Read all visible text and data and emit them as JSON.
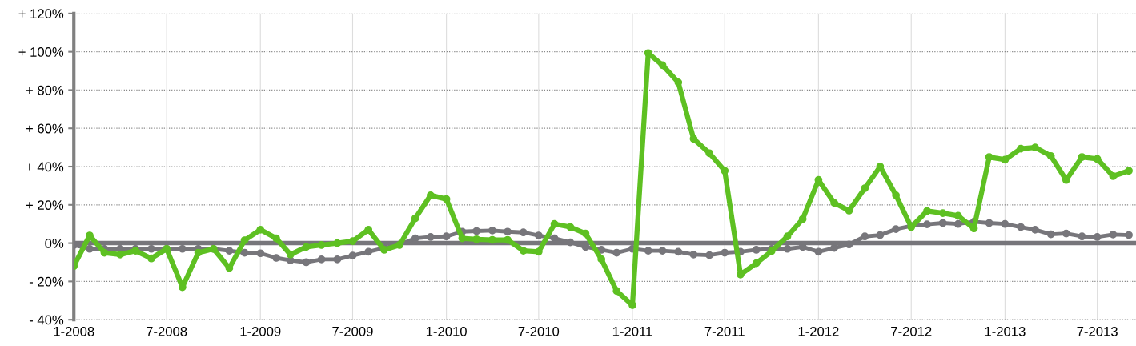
{
  "chart_data": {
    "type": "line",
    "x": [
      "2008-01",
      "2008-02",
      "2008-03",
      "2008-04",
      "2008-05",
      "2008-06",
      "2008-07",
      "2008-08",
      "2008-09",
      "2008-10",
      "2008-11",
      "2008-12",
      "2009-01",
      "2009-02",
      "2009-03",
      "2009-04",
      "2009-05",
      "2009-06",
      "2009-07",
      "2009-08",
      "2009-09",
      "2009-10",
      "2009-11",
      "2009-12",
      "2010-01",
      "2010-02",
      "2010-03",
      "2010-04",
      "2010-05",
      "2010-06",
      "2010-07",
      "2010-08",
      "2010-09",
      "2010-10",
      "2010-11",
      "2010-12",
      "2011-01",
      "2011-02",
      "2011-03",
      "2011-04",
      "2011-05",
      "2011-06",
      "2011-07",
      "2011-08",
      "2011-09",
      "2011-10",
      "2011-11",
      "2011-12",
      "2012-01",
      "2012-02",
      "2012-03",
      "2012-04",
      "2012-05",
      "2012-06",
      "2012-07",
      "2012-08",
      "2012-09",
      "2012-10",
      "2012-11",
      "2012-12",
      "2013-01",
      "2013-02",
      "2013-03",
      "2013-04",
      "2013-05",
      "2013-06",
      "2013-07",
      "2013-08",
      "2013-09"
    ],
    "series": [
      {
        "color": "#77767b",
        "values": [
          -1,
          -3,
          -3,
          -3,
          -3,
          -3,
          -3,
          -3,
          -3,
          -3,
          -4,
          -5,
          -5.3,
          -7.7,
          -9,
          -10,
          -8.5,
          -8.5,
          -6.5,
          -4.5,
          -2.5,
          -0.7,
          2.5,
          3.2,
          3.5,
          6,
          6.3,
          6.6,
          6,
          5.6,
          4,
          2.5,
          0.4,
          -2,
          -3.5,
          -5,
          -3,
          -4,
          -4,
          -4.5,
          -6,
          -6.3,
          -5,
          -4.5,
          -3.5,
          -3,
          -3,
          -2,
          -4.5,
          -2.5,
          -0.7,
          3.5,
          4.2,
          7.3,
          9,
          9.8,
          10.5,
          10,
          11.2,
          10.5,
          10,
          8.4,
          7,
          4.6,
          5,
          3.5,
          3.2,
          4.5,
          4.2
        ]
      },
      {
        "color": "#5ec022",
        "values": [
          -12,
          4,
          -5,
          -6,
          -4,
          -8,
          -3,
          -23,
          -5,
          -3,
          -13,
          1.5,
          7,
          2.5,
          -6,
          -2,
          -1,
          0,
          1,
          7,
          -3.5,
          -1,
          13,
          25,
          23,
          2.5,
          2,
          1.7,
          1.7,
          -4,
          -4.5,
          10,
          8.4,
          5,
          -8.4,
          -25,
          -32.4,
          99.3,
          93,
          84,
          54.5,
          47,
          37.8,
          -16.4,
          -10.5,
          -4.2,
          3.5,
          12.6,
          33,
          21,
          17,
          28.7,
          40,
          25,
          8.4,
          16.8,
          15.7,
          14.3,
          7.7,
          45,
          43.6,
          49.4,
          50,
          45.5,
          33,
          45,
          44,
          35,
          37.8
        ]
      }
    ],
    "xlim": [
      "2008-01-01",
      "2013-09-15"
    ],
    "xticks": [
      {
        "value": "2008-01-01",
        "label": "1-2008"
      },
      {
        "value": "2008-07-01",
        "label": "7-2008"
      },
      {
        "value": "2009-01-01",
        "label": "1-2009"
      },
      {
        "value": "2009-07-01",
        "label": "7-2009"
      },
      {
        "value": "2010-01-01",
        "label": "1-2010"
      },
      {
        "value": "2010-07-01",
        "label": "7-2010"
      },
      {
        "value": "2011-01-01",
        "label": "1-2011"
      },
      {
        "value": "2011-07-01",
        "label": "7-2011"
      },
      {
        "value": "2012-01-01",
        "label": "1-2012"
      },
      {
        "value": "2012-07-01",
        "label": "7-2012"
      },
      {
        "value": "2013-01-01",
        "label": "1-2013"
      },
      {
        "value": "2013-07-01",
        "label": "7-2013"
      }
    ],
    "ylim": [
      -40,
      120
    ],
    "yticks": [
      {
        "value": -40,
        "label": "- 40%"
      },
      {
        "value": -20,
        "label": "- 20%"
      },
      {
        "value": 0,
        "label": "0%"
      },
      {
        "value": 20,
        "label": "+ 20%"
      },
      {
        "value": 40,
        "label": "+ 40%"
      },
      {
        "value": 60,
        "label": "+ 60%"
      },
      {
        "value": 80,
        "label": "+ 80%"
      },
      {
        "value": 100,
        "label": "+ 100%"
      },
      {
        "value": 120,
        "label": "+ 120%"
      }
    ],
    "ref_lines": [
      {
        "axis": "y",
        "value": 0,
        "color": "#77767b"
      }
    ],
    "grid": true,
    "marker": "circle",
    "line_style": "solid"
  }
}
